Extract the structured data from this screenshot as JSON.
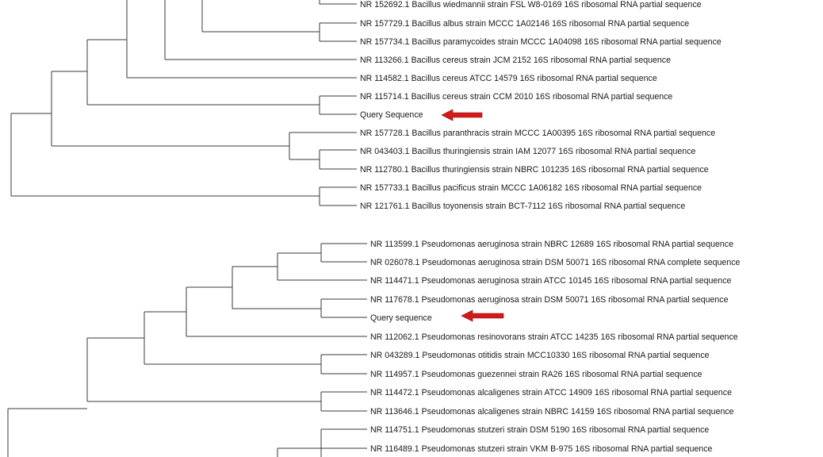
{
  "tree1": {
    "leaves": [
      "NR 152692.1 Bacillus wiedmannii strain FSL W8-0169 16S ribosomal RNA partial sequence",
      "NR 157729.1 Bacillus albus strain MCCC 1A02146 16S ribosomal RNA partial sequence",
      "NR 157734.1 Bacillus paramycoides strain MCCC 1A04098 16S ribosomal RNA partial sequence",
      "NR 113266.1 Bacillus cereus strain JCM 2152 16S ribosomal RNA partial sequence",
      "NR 114582.1 Bacillus cereus ATCC 14579 16S ribosomal RNA partial sequence",
      "NR 115714.1 Bacillus cereus strain CCM 2010 16S ribosomal RNA partial sequence",
      "Query Sequence",
      "NR 157728.1 Bacillus paranthracis strain MCCC 1A00395 16S ribosomal RNA partial sequence",
      "NR 043403.1 Bacillus thuringiensis strain IAM 12077 16S ribosomal RNA partial sequence",
      "NR 112780.1 Bacillus thuringiensis strain NBRC 101235 16S ribosomal RNA partial sequence",
      "NR 157733.1 Bacillus pacificus strain MCCC 1A06182 16S ribosomal RNA partial sequence",
      "NR 121761.1 Bacillus toyonensis strain BCT-7112 16S ribosomal RNA partial sequence"
    ]
  },
  "tree2": {
    "leaves": [
      "NR 113599.1 Pseudomonas aeruginosa strain NBRC 12689 16S ribosomal RNA partial sequence",
      "NR 026078.1 Pseudomonas aeruginosa strain DSM 50071 16S ribosomal RNA complete sequence",
      "NR 114471.1 Pseudomonas aeruginosa strain ATCC 10145 16S ribosomal RNA partial sequence",
      "NR 117678.1 Pseudomonas aeruginosa strain DSM 50071 16S ribosomal RNA partial sequence",
      "Query sequence",
      "NR 112062.1 Pseudomonas resinovorans strain ATCC 14235 16S ribosomal RNA partial sequence",
      "NR 043289.1 Pseudomonas otitidis strain MCC10330 16S ribosomal RNA partial sequence",
      "NR 114957.1 Pseudomonas guezennei strain RA26 16S ribosomal RNA partial sequence",
      "NR 114472.1 Pseudomonas alcaligenes strain ATCC 14909 16S ribosomal RNA partial sequence",
      "NR 113646.1 Pseudomonas alcaligenes strain NBRC 14159 16S ribosomal RNA partial sequence",
      "NR 114751.1 Pseudomonas stutzeri strain DSM 5190 16S ribosomal RNA partial sequence",
      "NR 116489.1 Pseudomonas stutzeri strain VKM B-975 16S ribosomal RNA partial sequence"
    ]
  },
  "colors": {
    "line": "#3a3a3a",
    "text": "#1a1a1a",
    "arrow": "#d11a1a"
  }
}
